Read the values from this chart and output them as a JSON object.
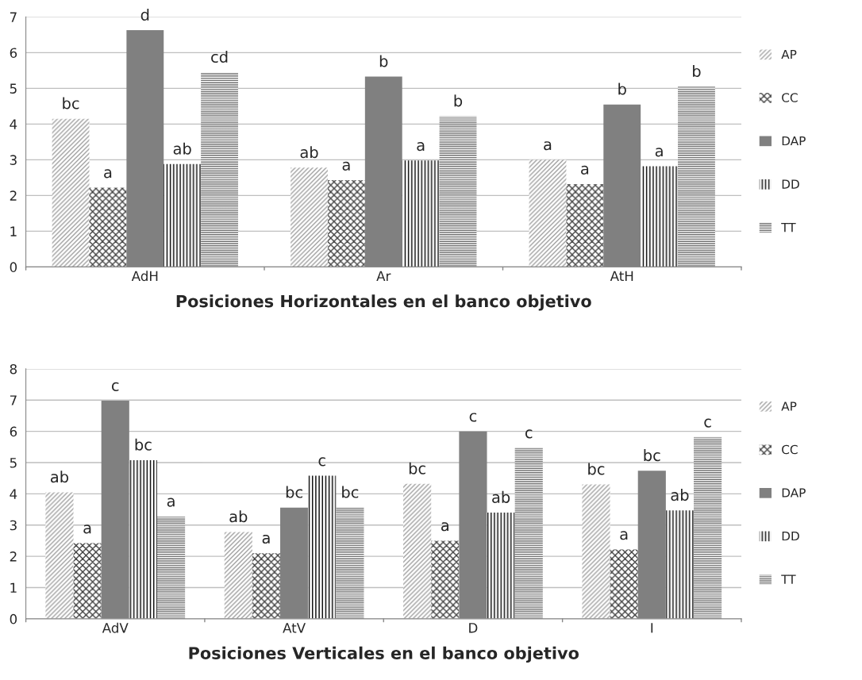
{
  "chart_data": [
    {
      "type": "bar",
      "xlabel": "Posiciones Horizontales en el banco objetivo",
      "categories": [
        "AdH",
        "Ar",
        "AtH"
      ],
      "ylim": [
        0,
        7
      ],
      "yticks": [
        0,
        1,
        2,
        3,
        4,
        5,
        6,
        7
      ],
      "grid": "y",
      "legend": "right",
      "series": [
        {
          "name": "AP",
          "color": "#a0a0a0",
          "values": [
            4.15,
            2.78,
            3.0
          ],
          "value_labels": [
            "bc",
            "ab",
            "a"
          ]
        },
        {
          "name": "CC",
          "color": "#404040",
          "values": [
            2.22,
            2.43,
            2.32
          ],
          "value_labels": [
            "a",
            "a",
            "a"
          ]
        },
        {
          "name": "DAP",
          "color": "#808080",
          "values": [
            6.63,
            5.33,
            4.55
          ],
          "value_labels": [
            "d",
            "b",
            "b"
          ]
        },
        {
          "name": "DD",
          "color": "#000000",
          "values": [
            2.88,
            2.98,
            2.82
          ],
          "value_labels": [
            "ab",
            "a",
            "a"
          ]
        },
        {
          "name": "TT",
          "color": "#707070",
          "values": [
            5.45,
            4.22,
            5.05
          ],
          "value_labels": [
            "cd",
            "b",
            "b"
          ]
        }
      ]
    },
    {
      "type": "bar",
      "xlabel": "Posiciones Verticales en el banco objetivo",
      "categories": [
        "AdV",
        "AtV",
        "D",
        "I"
      ],
      "ylim": [
        0,
        8
      ],
      "yticks": [
        0,
        1,
        2,
        3,
        4,
        5,
        6,
        7,
        8
      ],
      "grid": "y",
      "legend": "right",
      "series": [
        {
          "name": "AP",
          "color": "#a0a0a0",
          "values": [
            4.05,
            2.78,
            4.32,
            4.3
          ],
          "value_labels": [
            "ab",
            "ab",
            "bc",
            "bc"
          ]
        },
        {
          "name": "CC",
          "color": "#404040",
          "values": [
            2.42,
            2.1,
            2.5,
            2.22
          ],
          "value_labels": [
            "a",
            "a",
            "a",
            "a"
          ]
        },
        {
          "name": "DAP",
          "color": "#808080",
          "values": [
            6.98,
            3.56,
            6.0,
            4.74
          ],
          "value_labels": [
            "c",
            "bc",
            "c",
            "bc"
          ]
        },
        {
          "name": "DD",
          "color": "#000000",
          "values": [
            5.08,
            4.58,
            3.4,
            3.47
          ],
          "value_labels": [
            "bc",
            "c",
            "ab",
            "ab"
          ]
        },
        {
          "name": "TT",
          "color": "#707070",
          "values": [
            3.28,
            3.56,
            5.47,
            5.82
          ],
          "value_labels": [
            "a",
            "bc",
            "c",
            "c"
          ]
        }
      ]
    }
  ]
}
